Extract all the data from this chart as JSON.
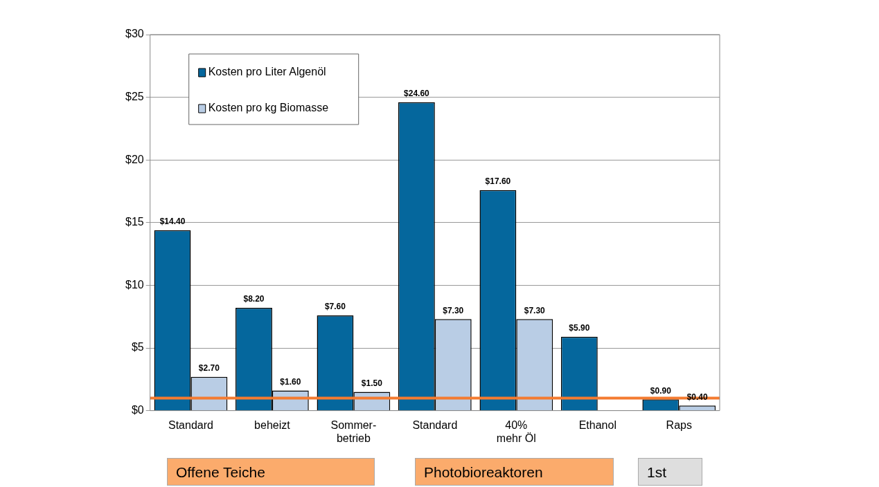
{
  "chart_data": {
    "type": "bar",
    "categories": [
      "Standard",
      "beheizt",
      "Sommer-\nbetrieb",
      "Standard",
      "40%\nmehr Öl",
      "Ethanol",
      "Raps"
    ],
    "series": [
      {
        "name": "Kosten pro Liter Algenöl",
        "color": "#05679d",
        "values": [
          14.4,
          8.2,
          7.6,
          24.6,
          17.6,
          5.9,
          0.9
        ],
        "value_labels": [
          "$14.40",
          "$8.20",
          "$7.60",
          "$24.60",
          "$17.60",
          "$5.90",
          "$0.90"
        ]
      },
      {
        "name": "Kosten pro kg Biomasse",
        "color": "#b9cde5",
        "values": [
          2.7,
          1.6,
          1.5,
          7.3,
          7.3,
          null,
          0.4
        ],
        "value_labels": [
          "$2.70",
          "$1.60",
          "$1.50",
          "$7.30",
          "$7.30",
          null,
          "$0.40"
        ]
      }
    ],
    "ylim": [
      0,
      30
    ],
    "yticks": [
      {
        "value": 0,
        "label": "$0"
      },
      {
        "value": 5,
        "label": "$5"
      },
      {
        "value": 10,
        "label": "$10"
      },
      {
        "value": 15,
        "label": "$15"
      },
      {
        "value": 20,
        "label": "$20"
      },
      {
        "value": 25,
        "label": "$25"
      },
      {
        "value": 30,
        "label": "$30"
      }
    ],
    "grid": "y",
    "legend": "top left",
    "ref_lines": [
      {
        "axis": "y",
        "value": 1,
        "color": "#f47b30"
      }
    ],
    "annotations": [
      "Offene Teiche",
      "Photobioreaktoren",
      "1st"
    ]
  }
}
